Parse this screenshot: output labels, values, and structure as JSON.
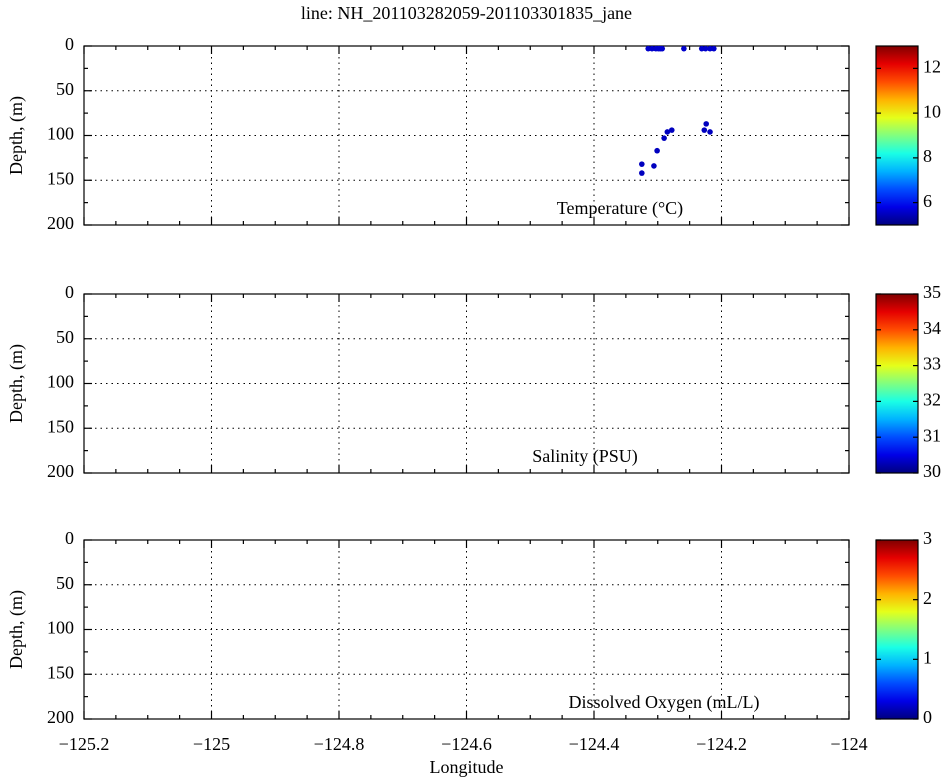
{
  "chart_data": [
    {
      "type": "scatter",
      "title": "line: NH_201103282059-201103301835_jane",
      "ylabel": "Depth, (m)",
      "annotation": "Temperature (°C)",
      "xlim": [
        -125.2,
        -124
      ],
      "xticks": [
        -125.2,
        -125,
        -124.8,
        -124.6,
        -124.4,
        -124.2,
        -124
      ],
      "ylim": [
        200,
        0
      ],
      "yticks": [
        0,
        50,
        100,
        150,
        200
      ],
      "grid": true,
      "x": [
        -124.315,
        -124.309,
        -124.303,
        -124.299,
        -124.296,
        -124.293,
        -124.259,
        -124.231,
        -124.225,
        -124.218,
        -124.212,
        -124.325,
        -124.325,
        -124.306,
        -124.301,
        -124.29,
        -124.285,
        -124.278,
        -124.224,
        -124.227,
        -124.218
      ],
      "values": [
        3,
        3,
        3,
        3,
        3,
        3,
        3,
        3,
        3,
        3,
        3,
        132,
        142,
        134,
        117,
        103,
        96,
        94,
        87,
        94,
        96
      ],
      "c": [
        5.6,
        5.6,
        5.6,
        5.6,
        5.6,
        5.6,
        5.6,
        5.6,
        5.6,
        5.6,
        5.6,
        5.5,
        5.5,
        5.5,
        5.5,
        5.5,
        5.5,
        5.5,
        5.5,
        5.5,
        5.5
      ],
      "colormap": "jet",
      "clim": [
        5,
        13
      ],
      "cticks": [
        6,
        8,
        10,
        12
      ]
    },
    {
      "type": "scatter",
      "ylabel": "Depth, (m)",
      "annotation": "Salinity (PSU)",
      "xlim": [
        -125.2,
        -124
      ],
      "xticks": [
        -125.2,
        -125,
        -124.8,
        -124.6,
        -124.4,
        -124.2,
        -124
      ],
      "ylim": [
        200,
        0
      ],
      "yticks": [
        0,
        50,
        100,
        150,
        200
      ],
      "grid": true,
      "colormap": "jet",
      "clim": [
        30,
        35
      ],
      "cticks": [
        30,
        31,
        32,
        33,
        34,
        35
      ]
    },
    {
      "type": "scatter",
      "ylabel": "Depth, (m)",
      "xlabel": "Longitude",
      "annotation": "Dissolved Oxygen (mL/L)",
      "xlim": [
        -125.2,
        -124
      ],
      "xticks": [
        {
          "value": -125.2,
          "label": "−125.2"
        },
        {
          "value": -125,
          "label": "−125"
        },
        {
          "value": -124.8,
          "label": "−124.8"
        },
        {
          "value": -124.6,
          "label": "−124.6"
        },
        {
          "value": -124.4,
          "label": "−124.4"
        },
        {
          "value": -124.2,
          "label": "−124.2"
        },
        {
          "value": -124,
          "label": "−124"
        }
      ],
      "ylim": [
        200,
        0
      ],
      "yticks": [
        0,
        50,
        100,
        150,
        200
      ],
      "grid": true,
      "colormap": "jet",
      "clim": [
        0,
        3
      ],
      "cticks": [
        0,
        1,
        2,
        3
      ]
    }
  ]
}
